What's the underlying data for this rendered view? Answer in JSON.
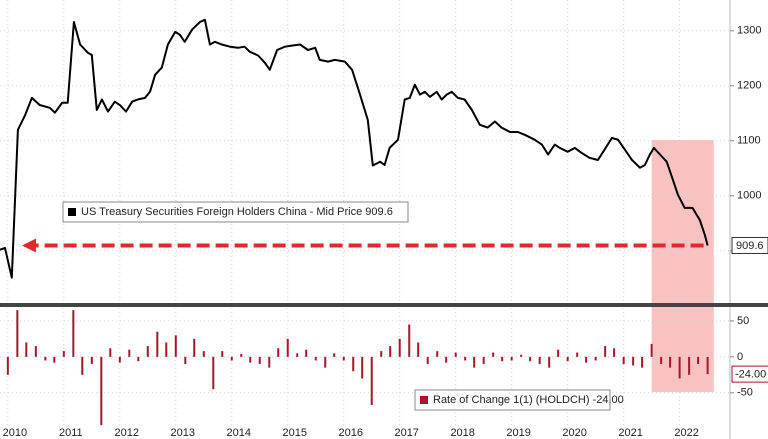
{
  "chart_data": [
    {
      "type": "line",
      "series": [
        {
          "name": "US Treasury Securities Foreign Holders China - Mid Price",
          "color": "#000000",
          "values": [
            902,
            905,
            851,
            1120,
            1147,
            1178,
            1165,
            1160,
            1151,
            1169,
            1169,
            1316,
            1275,
            1260,
            1256,
            1156,
            1175,
            1153,
            1171,
            1165,
            1153,
            1171,
            1175,
            1178,
            1189,
            1220,
            1233,
            1275,
            1298,
            1293,
            1280,
            1302,
            1316,
            1320,
            1275,
            1280,
            1275,
            1271,
            1269,
            1271,
            1262,
            1255,
            1242,
            1229,
            1265,
            1271,
            1273,
            1275,
            1265,
            1269,
            1247,
            1244,
            1247,
            1244,
            1229,
            1184,
            1138,
            1055,
            1062,
            1056,
            1087,
            1102,
            1175,
            1178,
            1202,
            1184,
            1189,
            1180,
            1189,
            1175,
            1184,
            1189,
            1178,
            1175,
            1156,
            1129,
            1124,
            1135,
            1124,
            1116,
            1116,
            1111,
            1102,
            1093,
            1075,
            1093,
            1087,
            1080,
            1087,
            1078,
            1069,
            1065,
            1084,
            1105,
            1102,
            1084,
            1065,
            1051,
            1056,
            1075,
            1087,
            1075,
            1062,
            1029,
            1002,
            978,
            978,
            956,
            929,
            909.6
          ]
        }
      ],
      "x": [
        2009.86,
        2009.95,
        2010.07,
        2010.18,
        2010.31,
        2010.43,
        2010.57,
        2010.75,
        2010.84,
        2010.97,
        2011.07,
        2011.18,
        2011.29,
        2011.43,
        2011.5,
        2011.59,
        2011.68,
        2011.79,
        2011.91,
        2012.0,
        2012.11,
        2012.22,
        2012.32,
        2012.45,
        2012.54,
        2012.63,
        2012.75,
        2012.86,
        2012.99,
        2013.07,
        2013.16,
        2013.29,
        2013.43,
        2013.52,
        2013.61,
        2013.7,
        2013.82,
        2013.97,
        2014.11,
        2014.23,
        2014.32,
        2014.47,
        2014.59,
        2014.68,
        2014.81,
        2014.95,
        2015.07,
        2015.22,
        2015.36,
        2015.49,
        2015.57,
        2015.72,
        2015.84,
        2016.02,
        2016.15,
        2016.29,
        2016.43,
        2016.52,
        2016.65,
        2016.73,
        2016.82,
        2016.97,
        2017.09,
        2017.18,
        2017.27,
        2017.36,
        2017.45,
        2017.54,
        2017.66,
        2017.75,
        2017.84,
        2017.93,
        2018.04,
        2018.16,
        2018.29,
        2018.43,
        2018.57,
        2018.7,
        2018.82,
        2018.97,
        2019.11,
        2019.23,
        2019.41,
        2019.54,
        2019.65,
        2019.77,
        2019.86,
        2020.0,
        2020.13,
        2020.25,
        2020.39,
        2020.54,
        2020.66,
        2020.79,
        2020.9,
        2021.02,
        2021.15,
        2021.29,
        2021.38,
        2021.47,
        2021.54,
        2021.65,
        2021.77,
        2021.88,
        2021.97,
        2022.09,
        2022.23,
        2022.36,
        2022.45,
        2022.5
      ],
      "xlim": [
        2009.86,
        2022.9
      ],
      "xticks": [
        2010,
        2011,
        2012,
        2013,
        2014,
        2015,
        2016,
        2017,
        2018,
        2019,
        2020,
        2021,
        2022
      ],
      "ylim": [
        805,
        1356
      ],
      "yticks": [
        900,
        1000,
        1100,
        1200,
        1300
      ],
      "grid": true,
      "highlight_x": [
        2021.5,
        2022.61
      ]
    },
    {
      "type": "bar",
      "series": [
        {
          "name": "Rate of Change 1(1) (HOLDCH)",
          "color": "#a3162b",
          "values": [
            -25,
            65,
            20,
            15,
            -5,
            -8,
            8,
            65,
            -25,
            -10,
            -95,
            12,
            -8,
            10,
            -6,
            15,
            35,
            20,
            30,
            -10,
            25,
            8,
            -45,
            8,
            -5,
            4,
            -8,
            -10,
            -15,
            12,
            25,
            5,
            10,
            -5,
            -15,
            5,
            -5,
            -20,
            -30,
            -67,
            8,
            15,
            25,
            45,
            20,
            -10,
            8,
            -8,
            6,
            -5,
            -15,
            -10,
            6,
            -6,
            -5,
            3,
            -6,
            -10,
            -15,
            10,
            -6,
            6,
            -8,
            -5,
            15,
            12,
            -10,
            -12,
            -15,
            18,
            -10,
            -15,
            -30,
            -25,
            -10,
            -24
          ]
        }
      ],
      "last_value_label": "-24.00",
      "x": [
        2010.0,
        2010.17,
        2010.33,
        2010.5,
        2010.67,
        2010.83,
        2011.0,
        2011.17,
        2011.33,
        2011.5,
        2011.67,
        2011.83,
        2012.0,
        2012.17,
        2012.33,
        2012.5,
        2012.67,
        2012.83,
        2013.0,
        2013.17,
        2013.33,
        2013.5,
        2013.67,
        2013.83,
        2014.0,
        2014.17,
        2014.33,
        2014.5,
        2014.67,
        2014.83,
        2015.0,
        2015.17,
        2015.33,
        2015.5,
        2015.67,
        2015.83,
        2016.0,
        2016.17,
        2016.33,
        2016.5,
        2016.67,
        2016.83,
        2017.0,
        2017.17,
        2017.33,
        2017.5,
        2017.67,
        2017.83,
        2018.0,
        2018.17,
        2018.33,
        2018.5,
        2018.67,
        2018.83,
        2019.0,
        2019.17,
        2019.33,
        2019.5,
        2019.67,
        2019.83,
        2020.0,
        2020.17,
        2020.33,
        2020.5,
        2020.67,
        2020.83,
        2021.0,
        2021.17,
        2021.33,
        2021.5,
        2021.67,
        2021.83,
        2022.0,
        2022.17,
        2022.33,
        2022.5
      ],
      "xlim": [
        2009.86,
        2022.9
      ],
      "xticks": [
        2010,
        2011,
        2012,
        2013,
        2014,
        2015,
        2016,
        2017,
        2018,
        2019,
        2020,
        2021,
        2022
      ],
      "ylim": [
        -99,
        68
      ],
      "yticks": [
        -50,
        0,
        50
      ],
      "grid": true
    }
  ]
}
